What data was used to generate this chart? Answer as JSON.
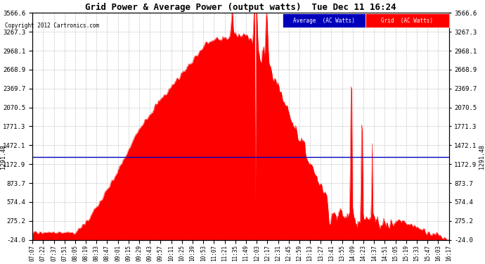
{
  "title": "Grid Power & Average Power (output watts)  Tue Dec 11 16:24",
  "copyright": "Copyright 2012 Cartronics.com",
  "yticks": [
    3566.6,
    3267.3,
    2968.1,
    2668.9,
    2369.7,
    2070.5,
    1771.3,
    1472.1,
    1172.9,
    873.7,
    574.4,
    275.2,
    -24.0
  ],
  "ymin": -24.0,
  "ymax": 3566.6,
  "avg_line_value": 1291.48,
  "avg_label": "1291.48",
  "xtick_labels": [
    "07:07",
    "07:22",
    "07:37",
    "07:51",
    "08:05",
    "08:19",
    "08:33",
    "08:47",
    "09:01",
    "09:15",
    "09:29",
    "09:43",
    "09:57",
    "10:11",
    "10:25",
    "10:39",
    "10:53",
    "11:07",
    "11:21",
    "11:35",
    "11:49",
    "12:03",
    "12:17",
    "12:31",
    "12:45",
    "12:59",
    "13:13",
    "13:27",
    "13:41",
    "13:55",
    "14:09",
    "14:23",
    "14:37",
    "14:51",
    "15:05",
    "15:19",
    "15:33",
    "15:47",
    "16:03",
    "16:17"
  ],
  "fill_color": "#FF0000",
  "avg_line_color": "#0000BB",
  "background_color": "#FFFFFF",
  "grid_color": "#AAAAAA",
  "legend_avg_bg": "#0000BB",
  "legend_grid_bg": "#FF0000",
  "legend_text_color": "#FFFFFF"
}
